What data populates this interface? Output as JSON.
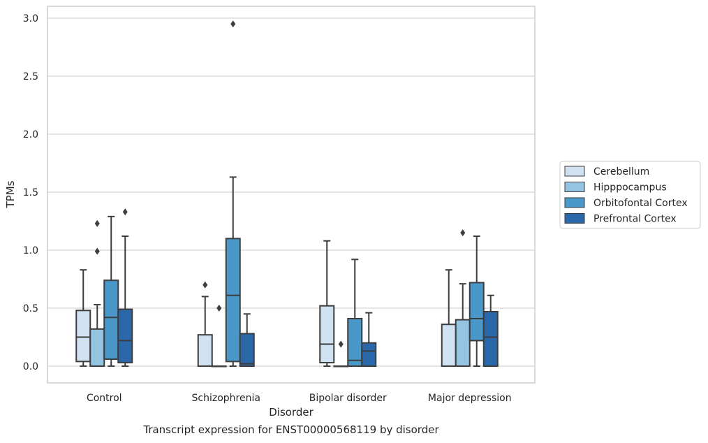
{
  "caption": "Transcript expression for ENST00000568119 by disorder",
  "chart_data": {
    "type": "box",
    "xlabel": "Disorder",
    "ylabel": "TPMs",
    "ylim": [
      -0.14,
      3.1
    ],
    "yticks": [
      "0.0",
      "0.5",
      "1.0",
      "1.5",
      "2.0",
      "2.5",
      "3.0"
    ],
    "grid": true,
    "legend_position": "right",
    "categories": [
      "Control",
      "Schizophrenia",
      "Bipolar disorder",
      "Major depression"
    ],
    "series": [
      {
        "name": "Cerebellum",
        "color": "#d0e1f2",
        "boxes": [
          {
            "min": 0.0,
            "q1": 0.04,
            "median": 0.25,
            "q3": 0.48,
            "max": 0.83,
            "outliers": []
          },
          {
            "min": 0.0,
            "q1": 0.0,
            "median": 0.0,
            "q3": 0.27,
            "max": 0.6,
            "outliers": [
              0.7
            ]
          },
          {
            "min": 0.0,
            "q1": 0.03,
            "median": 0.19,
            "q3": 0.52,
            "max": 1.08,
            "outliers": []
          },
          {
            "min": 0.0,
            "q1": 0.0,
            "median": 0.0,
            "q3": 0.36,
            "max": 0.83,
            "outliers": []
          }
        ]
      },
      {
        "name": "Hipppocampus",
        "color": "#94c4df",
        "boxes": [
          {
            "min": 0.0,
            "q1": 0.0,
            "median": 0.0,
            "q3": 0.32,
            "max": 0.53,
            "outliers": [
              0.99,
              1.23
            ]
          },
          {
            "min": 0.0,
            "q1": 0.0,
            "median": 0.0,
            "q3": 0.0,
            "max": 0.0,
            "outliers": [
              0.5
            ]
          },
          {
            "min": 0.0,
            "q1": 0.0,
            "median": 0.0,
            "q3": 0.0,
            "max": 0.0,
            "outliers": [
              0.19
            ]
          },
          {
            "min": 0.0,
            "q1": 0.0,
            "median": 0.0,
            "q3": 0.4,
            "max": 0.71,
            "outliers": [
              1.15
            ]
          }
        ]
      },
      {
        "name": "Orbitofontal Cortex",
        "color": "#4a98c9",
        "boxes": [
          {
            "min": 0.0,
            "q1": 0.06,
            "median": 0.42,
            "q3": 0.74,
            "max": 1.29,
            "outliers": []
          },
          {
            "min": 0.0,
            "q1": 0.04,
            "median": 0.61,
            "q3": 1.1,
            "max": 1.63,
            "outliers": [
              2.95
            ]
          },
          {
            "min": 0.0,
            "q1": 0.0,
            "median": 0.05,
            "q3": 0.41,
            "max": 0.92,
            "outliers": []
          },
          {
            "min": 0.0,
            "q1": 0.22,
            "median": 0.41,
            "q3": 0.72,
            "max": 1.12,
            "outliers": []
          }
        ]
      },
      {
        "name": "Prefrontal Cortex",
        "color": "#2a68aa",
        "boxes": [
          {
            "min": 0.0,
            "q1": 0.03,
            "median": 0.22,
            "q3": 0.49,
            "max": 1.12,
            "outliers": [
              1.33
            ]
          },
          {
            "min": 0.0,
            "q1": 0.0,
            "median": 0.02,
            "q3": 0.28,
            "max": 0.45,
            "outliers": []
          },
          {
            "min": 0.0,
            "q1": 0.0,
            "median": 0.13,
            "q3": 0.2,
            "max": 0.46,
            "outliers": []
          },
          {
            "min": 0.0,
            "q1": 0.0,
            "median": 0.25,
            "q3": 0.47,
            "max": 0.61,
            "outliers": []
          }
        ]
      }
    ]
  }
}
